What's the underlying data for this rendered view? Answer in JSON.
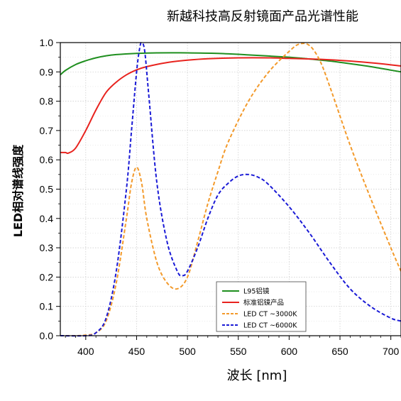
{
  "chart_data": {
    "type": "line",
    "title": "新越科技高反射镜面产品光谱性能",
    "xlabel": "波长 [nm]",
    "ylabel": "LED相对谱线强度",
    "xlim": [
      375,
      710
    ],
    "ylim": [
      0,
      1.0
    ],
    "xticks": [
      400,
      450,
      500,
      550,
      600,
      650,
      700
    ],
    "xtick_labels": [
      "400",
      "450",
      "500",
      "550",
      "600",
      "650",
      "700"
    ],
    "yticks": [
      0.0,
      0.1,
      0.2,
      0.3,
      0.4,
      0.5,
      0.6,
      0.7,
      0.8,
      0.9,
      1.0
    ],
    "ytick_labels": [
      "0.0",
      "0.1",
      "0.2",
      "0.3",
      "0.4",
      "0.5",
      "0.6",
      "0.7",
      "0.8",
      "0.9",
      "1.0"
    ],
    "grid": true,
    "legend_position": "bottom-right",
    "series": [
      {
        "name": "L95铝镜",
        "color": "#1f8f1f",
        "dash": "solid",
        "x": [
          375,
          380,
          390,
          400,
          410,
          420,
          430,
          450,
          470,
          500,
          530,
          560,
          600,
          620,
          640,
          660,
          680,
          700,
          710
        ],
        "y": [
          0.89,
          0.905,
          0.925,
          0.938,
          0.948,
          0.955,
          0.959,
          0.963,
          0.965,
          0.965,
          0.963,
          0.958,
          0.95,
          0.944,
          0.937,
          0.928,
          0.918,
          0.906,
          0.9
        ]
      },
      {
        "name": "标准铝镜产品",
        "color": "#e8231e",
        "dash": "solid",
        "x": [
          375,
          380,
          383,
          390,
          400,
          410,
          420,
          430,
          440,
          450,
          460,
          480,
          500,
          520,
          550,
          580,
          600,
          630,
          660,
          690,
          710
        ],
        "y": [
          0.625,
          0.625,
          0.623,
          0.64,
          0.7,
          0.77,
          0.83,
          0.865,
          0.89,
          0.907,
          0.918,
          0.932,
          0.94,
          0.945,
          0.948,
          0.948,
          0.946,
          0.943,
          0.937,
          0.928,
          0.92
        ]
      },
      {
        "name": "LED CT ~3000K",
        "color": "#f39a2b",
        "dash": "dashed",
        "x": [
          375,
          390,
          400,
          410,
          420,
          430,
          440,
          445,
          450,
          455,
          460,
          470,
          480,
          490,
          500,
          510,
          520,
          530,
          540,
          560,
          580,
          600,
          610,
          620,
          630,
          640,
          660,
          680,
          700,
          710
        ],
        "y": [
          0.0,
          0.0,
          0.002,
          0.01,
          0.05,
          0.18,
          0.4,
          0.52,
          0.575,
          0.52,
          0.4,
          0.25,
          0.18,
          0.16,
          0.2,
          0.32,
          0.45,
          0.56,
          0.66,
          0.8,
          0.9,
          0.97,
          0.995,
          0.99,
          0.94,
          0.85,
          0.65,
          0.47,
          0.3,
          0.22
        ]
      },
      {
        "name": "LED CT ~6000K",
        "color": "#1a1ad6",
        "dash": "dashed",
        "x": [
          375,
          400,
          410,
          420,
          430,
          440,
          445,
          450,
          453,
          455,
          458,
          462,
          470,
          480,
          490,
          495,
          500,
          510,
          520,
          530,
          540,
          550,
          560,
          570,
          580,
          600,
          620,
          640,
          660,
          680,
          700,
          710
        ],
        "y": [
          0.0,
          0.0,
          0.01,
          0.06,
          0.22,
          0.5,
          0.7,
          0.9,
          0.98,
          1.0,
          0.97,
          0.82,
          0.52,
          0.32,
          0.22,
          0.205,
          0.22,
          0.3,
          0.4,
          0.48,
          0.52,
          0.545,
          0.55,
          0.54,
          0.515,
          0.44,
          0.35,
          0.25,
          0.16,
          0.1,
          0.06,
          0.05
        ]
      }
    ]
  }
}
